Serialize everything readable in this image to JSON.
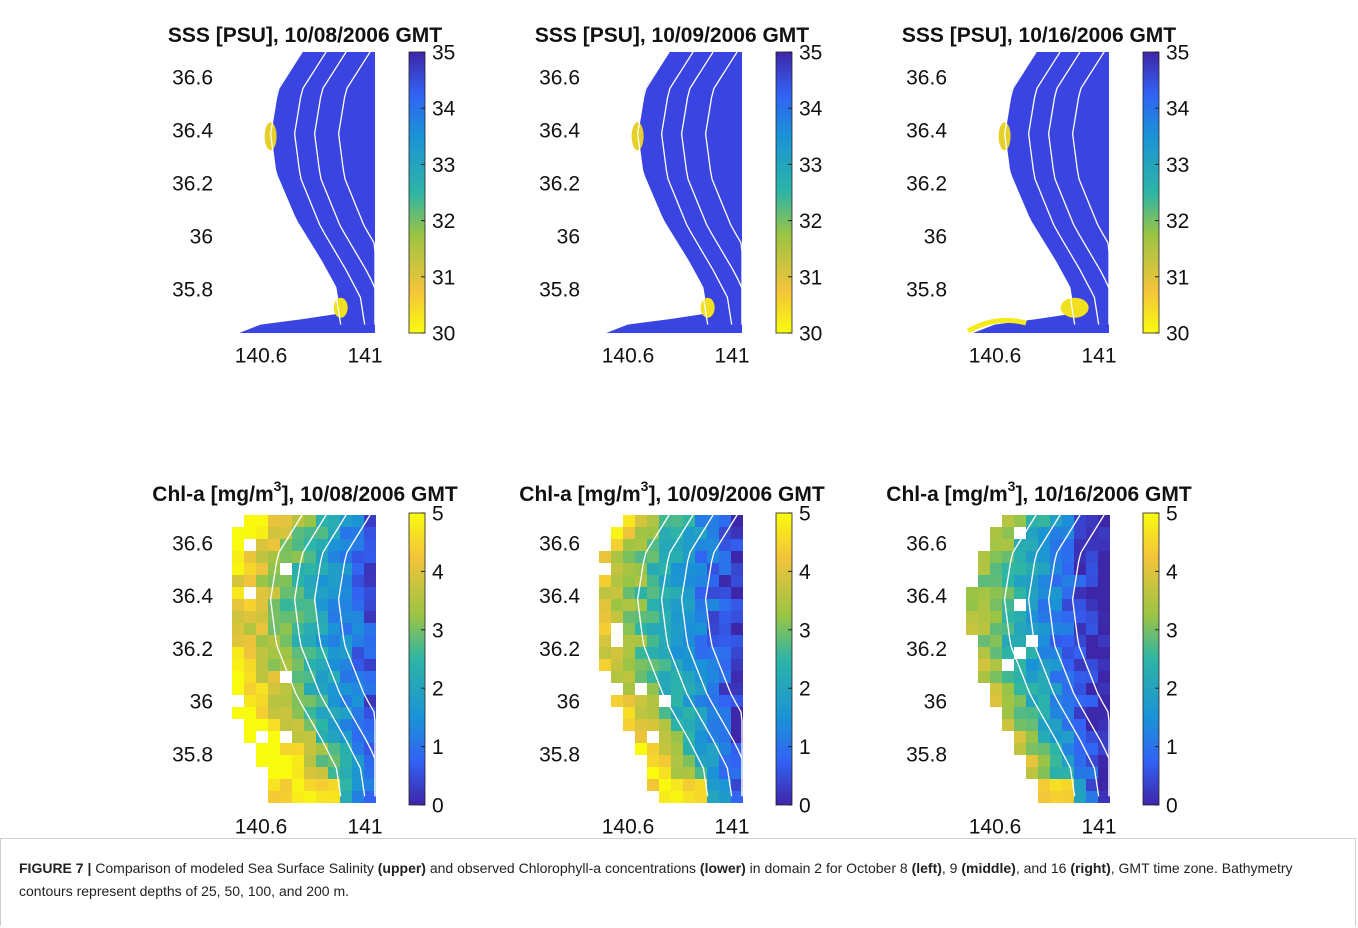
{
  "panels": [
    {
      "title": [
        {
          "text": "SSS [PSU], 10/08/2006 GMT",
          "superscript": false
        }
      ],
      "yticks": [
        36.6,
        36.4,
        36.2,
        36,
        35.8
      ],
      "xticks": [
        140.6,
        141
      ],
      "colorbar_ticks": [
        35,
        34,
        33,
        32,
        31,
        30
      ]
    },
    {
      "title": [
        {
          "text": "SSS [PSU], 10/09/2006 GMT",
          "superscript": false
        }
      ],
      "yticks": [
        36.6,
        36.4,
        36.2,
        36,
        35.8
      ],
      "xticks": [
        140.6,
        141
      ],
      "colorbar_ticks": [
        35,
        34,
        33,
        32,
        31,
        30
      ]
    },
    {
      "title": [
        {
          "text": "SSS [PSU], 10/16/2006 GMT",
          "superscript": false
        }
      ],
      "yticks": [
        36.6,
        36.4,
        36.2,
        36,
        35.8
      ],
      "xticks": [
        140.6,
        141
      ],
      "colorbar_ticks": [
        35,
        34,
        33,
        32,
        31,
        30
      ]
    },
    {
      "title": [
        {
          "text": "Chl-a [mg/m",
          "superscript": false
        },
        {
          "text": "3",
          "superscript": true
        },
        {
          "text": "], 10/08/2006 GMT",
          "superscript": false
        }
      ],
      "yticks": [
        36.6,
        36.4,
        36.2,
        36,
        35.8
      ],
      "xticks": [
        140.6,
        141
      ],
      "colorbar_ticks": [
        5,
        4,
        3,
        2,
        1,
        0
      ]
    },
    {
      "title": [
        {
          "text": "Chl-a [mg/m",
          "superscript": false
        },
        {
          "text": "3",
          "superscript": true
        },
        {
          "text": "], 10/09/2006 GMT",
          "superscript": false
        }
      ],
      "yticks": [
        36.6,
        36.4,
        36.2,
        36,
        35.8
      ],
      "xticks": [
        140.6,
        141
      ],
      "colorbar_ticks": [
        5,
        4,
        3,
        2,
        1,
        0
      ]
    },
    {
      "title": [
        {
          "text": "Chl-a [mg/m",
          "superscript": false
        },
        {
          "text": "3",
          "superscript": true
        },
        {
          "text": "], 10/16/2006 GMT",
          "superscript": false
        }
      ],
      "yticks": [
        36.6,
        36.4,
        36.2,
        36,
        35.8
      ],
      "xticks": [
        140.6,
        141
      ],
      "colorbar_ticks": [
        5,
        4,
        3,
        2,
        1,
        0
      ]
    }
  ],
  "caption": {
    "runs": [
      {
        "text": "FIGURE 7 |",
        "bold": true
      },
      {
        "text": " Comparison of modeled Sea Surface Salinity ",
        "bold": false
      },
      {
        "text": "(upper)",
        "bold": true
      },
      {
        "text": " and observed Chlorophyll-a concentrations ",
        "bold": false
      },
      {
        "text": "(lower)",
        "bold": true
      },
      {
        "text": " in domain 2 for October 8 ",
        "bold": false
      },
      {
        "text": "(left)",
        "bold": true
      },
      {
        "text": ", 9 ",
        "bold": false
      },
      {
        "text": "(middle)",
        "bold": true
      },
      {
        "text": ", and 16 ",
        "bold": false
      },
      {
        "text": "(right)",
        "bold": true
      },
      {
        "text": ", GMT time zone. Bathymetry contours represent depths of 25, 50, 100, and 200 m.",
        "bold": false
      }
    ]
  }
}
